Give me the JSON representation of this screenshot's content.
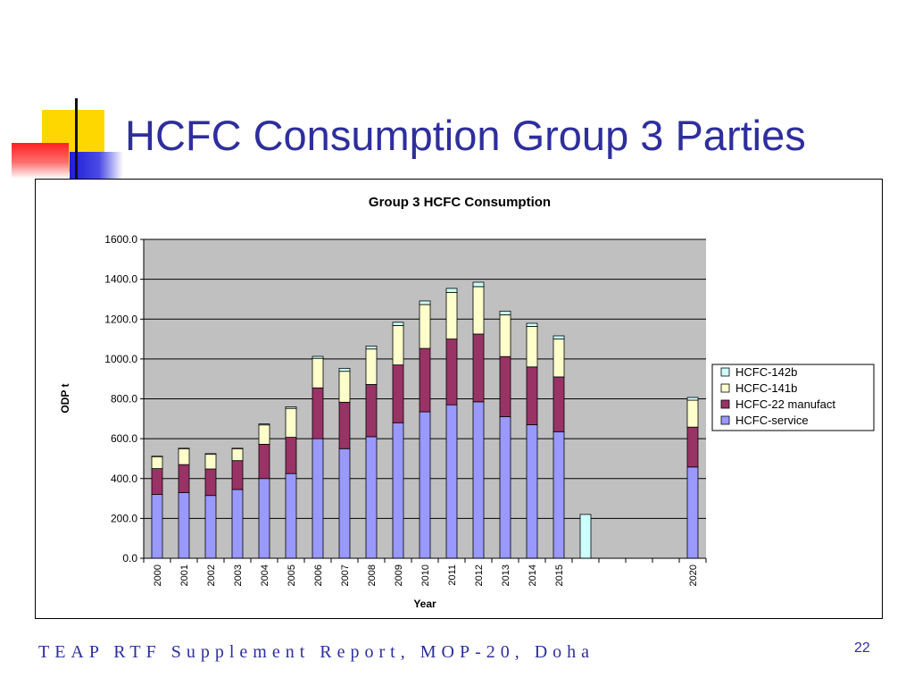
{
  "slide": {
    "title": "HCFC Consumption Group 3 Parties",
    "footer": "TEAP RTF Supplement Report, MOP-20, Doha",
    "page_number": "22"
  },
  "colors": {
    "title": "#2e2e9e",
    "plot_bg": "#c0c0c0",
    "service": "#9999ff",
    "manufact": "#993366",
    "hcfc141b": "#ffffcc",
    "hcfc142b": "#ccffff"
  },
  "chart_data": {
    "type": "bar",
    "stacked": true,
    "title": "Group 3 HCFC Consumption",
    "xlabel": "Year",
    "ylabel": "ODP t",
    "ylim": [
      0,
      1600
    ],
    "yticks": [
      "0.0",
      "200.0",
      "400.0",
      "600.0",
      "800.0",
      "1000.0",
      "1200.0",
      "1400.0",
      "1600.0"
    ],
    "grid": true,
    "legend_position": "right",
    "categories": [
      "2000",
      "2001",
      "2002",
      "2003",
      "2004",
      "2005",
      "2006",
      "2007",
      "2008",
      "2009",
      "2010",
      "2011",
      "2012",
      "2013",
      "2014",
      "2015",
      "",
      "",
      "",
      "",
      "2020"
    ],
    "series": [
      {
        "name": "HCFC-service",
        "color": "#9999ff",
        "values": [
          320,
          330,
          315,
          345,
          400,
          425,
          600,
          550,
          610,
          680,
          735,
          770,
          785,
          710,
          670,
          635,
          0,
          0,
          0,
          0,
          458
        ]
      },
      {
        "name": "HCFC-22 manufact",
        "color": "#993366",
        "values": [
          130,
          140,
          133,
          145,
          172,
          182,
          255,
          233,
          262,
          290,
          318,
          330,
          340,
          302,
          290,
          275,
          0,
          0,
          0,
          0,
          200
        ]
      },
      {
        "name": "HCFC-141b",
        "color": "#ffffcc",
        "values": [
          60,
          80,
          75,
          60,
          97,
          145,
          148,
          155,
          178,
          198,
          220,
          234,
          238,
          210,
          203,
          190,
          0,
          0,
          0,
          0,
          135
        ]
      },
      {
        "name": "HCFC-142b",
        "color": "#ccffff",
        "values": [
          2,
          2,
          2,
          2,
          5,
          8,
          10,
          15,
          15,
          16,
          18,
          20,
          22,
          18,
          16,
          16,
          220,
          0,
          0,
          0,
          14
        ]
      }
    ]
  }
}
